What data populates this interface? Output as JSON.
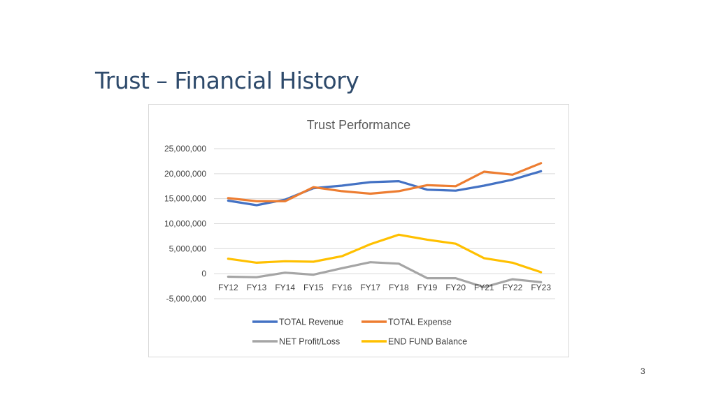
{
  "slide": {
    "title": "Trust – Financial History",
    "page_number": "3"
  },
  "chart_data": {
    "type": "line",
    "title": "Trust Performance",
    "xlabel": "",
    "ylabel": "",
    "categories": [
      "FY12",
      "FY13",
      "FY14",
      "FY15",
      "FY16",
      "FY17",
      "FY18",
      "FY19",
      "FY20",
      "FY21",
      "FY22",
      "FY23"
    ],
    "ylim": [
      -5000000,
      25000000
    ],
    "yticks": [
      25000000,
      20000000,
      15000000,
      10000000,
      5000000,
      0,
      -5000000
    ],
    "ytick_labels": [
      "25,000,000",
      "20,000,000",
      "15,000,000",
      "10,000,000",
      "5,000,000",
      "0",
      "-5,000,000"
    ],
    "grid": true,
    "legend_position": "bottom",
    "series": [
      {
        "name": "TOTAL Revenue",
        "color": "#4472c4",
        "values": [
          14600000,
          13700000,
          14800000,
          17100000,
          17600000,
          18300000,
          18500000,
          16800000,
          16600000,
          17600000,
          18800000,
          20500000
        ]
      },
      {
        "name": "TOTAL Expense",
        "color": "#ed7d31",
        "values": [
          15100000,
          14500000,
          14500000,
          17300000,
          16500000,
          16000000,
          16500000,
          17700000,
          17500000,
          20400000,
          19800000,
          22100000
        ]
      },
      {
        "name": "NET Profit/Loss",
        "color": "#a5a5a5",
        "values": [
          -600000,
          -700000,
          200000,
          -200000,
          1100000,
          2300000,
          2000000,
          -900000,
          -900000,
          -2700000,
          -1100000,
          -1700000
        ]
      },
      {
        "name": "END FUND Balance",
        "color": "#ffc000",
        "values": [
          3000000,
          2200000,
          2500000,
          2400000,
          3500000,
          5900000,
          7800000,
          6800000,
          6000000,
          3100000,
          2200000,
          300000
        ]
      }
    ]
  }
}
